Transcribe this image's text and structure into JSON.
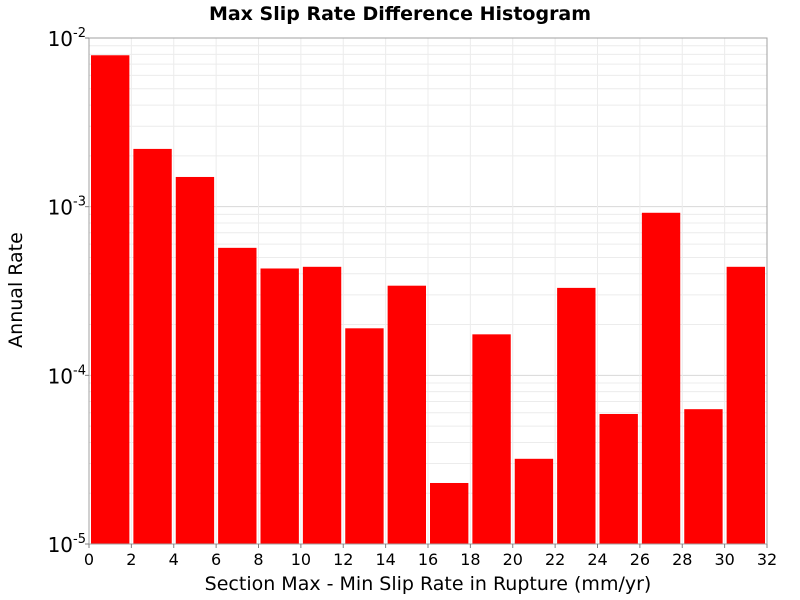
{
  "chart_data": {
    "type": "bar",
    "title": "Max Slip Rate Difference Histogram",
    "xlabel": "Section Max - Min Slip Rate in Rupture (mm/yr)",
    "ylabel": "Annual Rate",
    "yscale": "log",
    "xlim": [
      0,
      32
    ],
    "ylim": [
      1e-05,
      0.01
    ],
    "bin_width": 2,
    "bar_color": "#ff0000",
    "grid": true,
    "legend": "none",
    "xticks": [
      "0",
      "2",
      "4",
      "6",
      "8",
      "10",
      "12",
      "14",
      "16",
      "18",
      "20",
      "22",
      "24",
      "26",
      "28",
      "30",
      "32"
    ],
    "yticks": [
      {
        "base": "10",
        "exp": "-5"
      },
      {
        "base": "10",
        "exp": "-4"
      },
      {
        "base": "10",
        "exp": "-3"
      },
      {
        "base": "10",
        "exp": "-2"
      }
    ],
    "bins": [
      {
        "x0": 0,
        "x1": 2,
        "value": 0.0079
      },
      {
        "x0": 2,
        "x1": 4,
        "value": 0.0022
      },
      {
        "x0": 4,
        "x1": 6,
        "value": 0.0015
      },
      {
        "x0": 6,
        "x1": 8,
        "value": 0.00057
      },
      {
        "x0": 8,
        "x1": 10,
        "value": 0.00043
      },
      {
        "x0": 10,
        "x1": 12,
        "value": 0.00044
      },
      {
        "x0": 12,
        "x1": 14,
        "value": 0.00019
      },
      {
        "x0": 14,
        "x1": 16,
        "value": 0.00034
      },
      {
        "x0": 16,
        "x1": 18,
        "value": 2.3e-05
      },
      {
        "x0": 18,
        "x1": 20,
        "value": 0.000175
      },
      {
        "x0": 20,
        "x1": 22,
        "value": 3.2e-05
      },
      {
        "x0": 22,
        "x1": 24,
        "value": 0.00033
      },
      {
        "x0": 24,
        "x1": 26,
        "value": 5.9e-05
      },
      {
        "x0": 26,
        "x1": 28,
        "value": 0.00092
      },
      {
        "x0": 28,
        "x1": 30,
        "value": 6.3e-05
      },
      {
        "x0": 30,
        "x1": 32,
        "value": 0.00044
      }
    ]
  }
}
